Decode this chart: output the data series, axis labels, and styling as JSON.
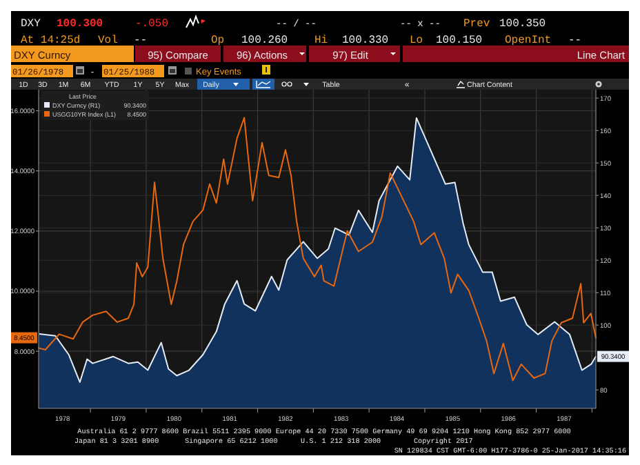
{
  "chart_data": {
    "type": "line",
    "title": "Line Chart",
    "legend": "top left",
    "legend_title": "Last Price",
    "grid": true,
    "xlim": [
      1978.07,
      1988.07
    ],
    "xticks": [
      {
        "value": 1978.5,
        "label": "1978"
      },
      {
        "value": 1979,
        "label": null
      },
      {
        "value": 1979.5,
        "label": "1979"
      },
      {
        "value": 1980,
        "label": null
      },
      {
        "value": 1980.5,
        "label": "1980"
      },
      {
        "value": 1981,
        "label": null
      },
      {
        "value": 1981.5,
        "label": "1981"
      },
      {
        "value": 1982,
        "label": null
      },
      {
        "value": 1982.5,
        "label": "1982"
      },
      {
        "value": 1983,
        "label": null
      },
      {
        "value": 1983.5,
        "label": "1983"
      },
      {
        "value": 1984,
        "label": null
      },
      {
        "value": 1984.5,
        "label": "1984"
      },
      {
        "value": 1985,
        "label": null
      },
      {
        "value": 1985.5,
        "label": "1985"
      },
      {
        "value": 1986,
        "label": null
      },
      {
        "value": 1986.5,
        "label": "1986"
      },
      {
        "value": 1987,
        "label": null
      },
      {
        "value": 1987.5,
        "label": "1987"
      },
      {
        "value": 1988,
        "label": null
      }
    ],
    "ylim": [
      6.1,
      16.7
    ],
    "yticks": [
      {
        "value": 8,
        "label": "8.0000"
      },
      {
        "value": 10,
        "label": "10.0000"
      },
      {
        "value": 12,
        "label": "12.0000"
      },
      {
        "value": 14,
        "label": "14.0000"
      },
      {
        "value": 16,
        "label": "16.0000"
      }
    ],
    "y2lim": [
      74.3,
      172.6
    ],
    "y2ticks": [
      80,
      100,
      110,
      120,
      130,
      140,
      150,
      160,
      170
    ],
    "series": [
      {
        "name": "DXY Curncy  (R1)",
        "type": "area",
        "axis": "y2",
        "color": "#e6ecf5",
        "x": [
          1978.08,
          1978.37,
          1978.61,
          1978.81,
          1978.94,
          1979.04,
          1979.41,
          1979.68,
          1979.85,
          1980.03,
          1980.27,
          1980.4,
          1980.55,
          1980.77,
          1981.02,
          1981.26,
          1981.41,
          1981.63,
          1981.76,
          1981.96,
          1982.25,
          1982.38,
          1982.53,
          1982.82,
          1983.07,
          1983.27,
          1983.39,
          1983.64,
          1983.81,
          1984.06,
          1984.18,
          1984.51,
          1984.73,
          1984.85,
          1985.12,
          1985.25,
          1985.37,
          1985.54,
          1985.69,
          1985.79,
          1986.04,
          1986.21,
          1986.36,
          1986.61,
          1986.83,
          1987.03,
          1987.33,
          1987.6,
          1987.82,
          1987.99,
          1988.07
        ],
        "values": [
          97.3,
          96.7,
          90.9,
          82.4,
          89.5,
          88.2,
          90.3,
          88.2,
          88.6,
          86.1,
          94.6,
          86.5,
          84.4,
          86.1,
          90.9,
          98,
          106.5,
          113.7,
          106.5,
          104.4,
          115,
          110.8,
          120.1,
          125.7,
          120.6,
          123.5,
          129.9,
          127.8,
          135.4,
          128.6,
          138.4,
          149,
          144.8,
          163.9,
          153.3,
          148.2,
          143.5,
          144,
          131.2,
          124.8,
          116.3,
          116.3,
          107.4,
          108.6,
          100.1,
          97.1,
          101,
          97.1,
          86.1,
          88,
          90.34
        ]
      },
      {
        "name": "USGG10YR Index  (L1)",
        "color": "#e8680f",
        "x": [
          1978.07,
          1978.19,
          1978.44,
          1978.69,
          1978.86,
          1979.04,
          1979.28,
          1979.48,
          1979.68,
          1979.78,
          1979.83,
          1979.93,
          1980.03,
          1980.15,
          1980.22,
          1980.3,
          1980.45,
          1980.55,
          1980.67,
          1980.84,
          1981.02,
          1981.14,
          1981.26,
          1981.39,
          1981.46,
          1981.63,
          1981.76,
          1981.91,
          1982.08,
          1982.2,
          1982.38,
          1982.5,
          1982.6,
          1982.7,
          1982.82,
          1983.02,
          1983.14,
          1983.19,
          1983.37,
          1983.61,
          1983.81,
          1984.06,
          1984.23,
          1984.38,
          1984.6,
          1984.8,
          1984.93,
          1985.17,
          1985.35,
          1985.47,
          1985.59,
          1985.79,
          1985.97,
          1986.11,
          1986.24,
          1986.41,
          1986.58,
          1986.73,
          1986.96,
          1987.16,
          1987.28,
          1987.45,
          1987.65,
          1987.8,
          1987.85,
          1987.98,
          1988.07
        ],
        "values": [
          8.11,
          8.05,
          8.57,
          8.41,
          8.97,
          9.2,
          9.33,
          8.97,
          9.1,
          9.56,
          10.94,
          10.48,
          10.8,
          13.62,
          12.47,
          11.09,
          9.56,
          10.34,
          11.55,
          12.32,
          12.7,
          13.56,
          12.93,
          14.39,
          13.56,
          15.08,
          15.77,
          13.01,
          14.94,
          13.85,
          13.78,
          14.7,
          13.85,
          12.32,
          11.09,
          10.48,
          10.86,
          10.34,
          10.17,
          12.01,
          11.32,
          11.63,
          12.47,
          13.93,
          13.09,
          12.32,
          11.55,
          11.94,
          11.09,
          9.94,
          10.56,
          10.02,
          9.1,
          8.34,
          7.26,
          8.26,
          7.03,
          7.57,
          7.11,
          7.26,
          8.34,
          8.95,
          9.1,
          10.25,
          8.95,
          9.26,
          8.45
        ]
      }
    ],
    "annotations": [
      "DXY",
      "100.300",
      "-.050",
      "-- / --",
      "-- x --",
      "Prev",
      "100.350",
      "At 14:25d",
      "Vol",
      "--",
      "Op",
      "100.260",
      "Hi",
      "100.330",
      "Lo",
      "100.150",
      "OpenInt",
      "--",
      "DXY Curncy",
      "95) Compare",
      "96) Actions",
      "97) Edit",
      "01/26/1978",
      "-",
      "01/25/1988",
      "Key Events",
      "1D",
      "3D",
      "1M",
      "6M",
      "YTD",
      "1Y",
      "5Y",
      "Max",
      "Daily",
      "Table",
      "«",
      "Chart Content",
      "Australia 61 2 9777 8600 Brazil 5511 2395 9000 Europe 44 20 7330 7500 Germany 49 69 9204 1210 Hong Kong 852 2977 6000",
      "Japan 81 3 3201 8900",
      "Singapore 65 6212 1000",
      "U.S. 1 212 318 2000",
      "Copyright 2017",
      "SN 129834 CST  GMT-6:00 H177-3786-0 25-Jan-2017 14:35:16",
      "90.3400",
      "8.4500",
      "90.3400",
      "8.4500"
    ]
  }
}
